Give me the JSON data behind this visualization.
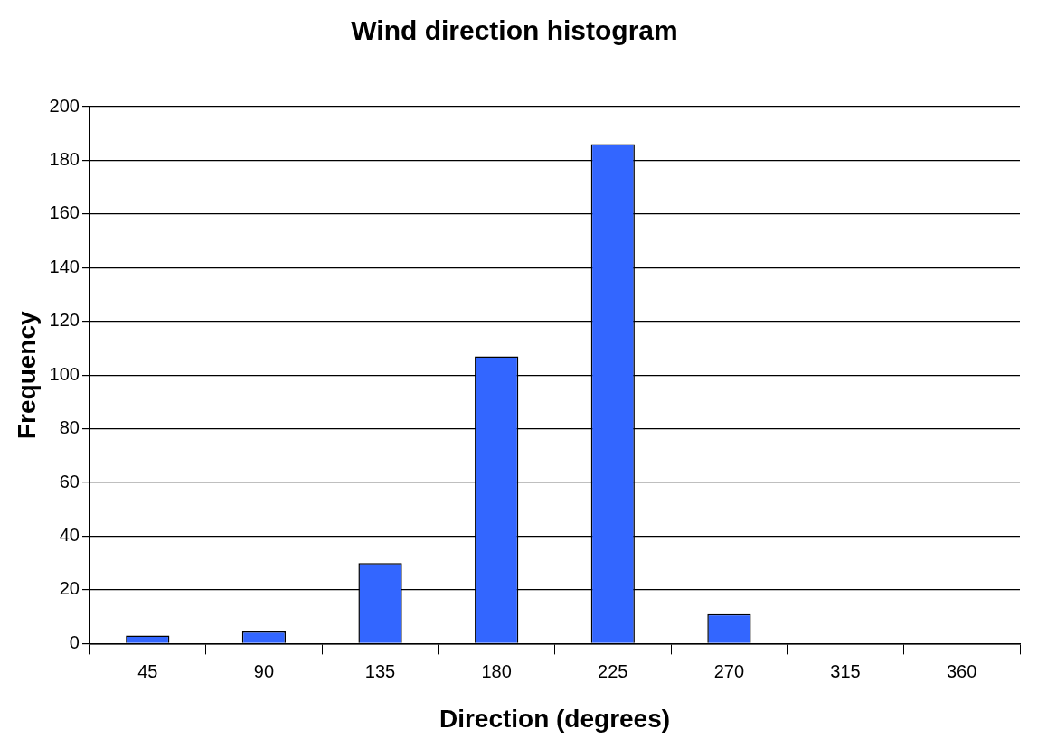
{
  "chart_data": {
    "type": "bar",
    "title": "Wind direction histogram",
    "xlabel": "Direction (degrees)",
    "ylabel": "Frequency",
    "categories": [
      "45",
      "90",
      "135",
      "180",
      "225",
      "270",
      "315",
      "360"
    ],
    "values": [
      3,
      4.5,
      30,
      107,
      186,
      11,
      0,
      0
    ],
    "color": "#3366ff",
    "ylim": [
      0,
      200
    ],
    "yticks": [
      0,
      20,
      40,
      60,
      80,
      100,
      120,
      140,
      160,
      180,
      200
    ],
    "grid": "y"
  }
}
